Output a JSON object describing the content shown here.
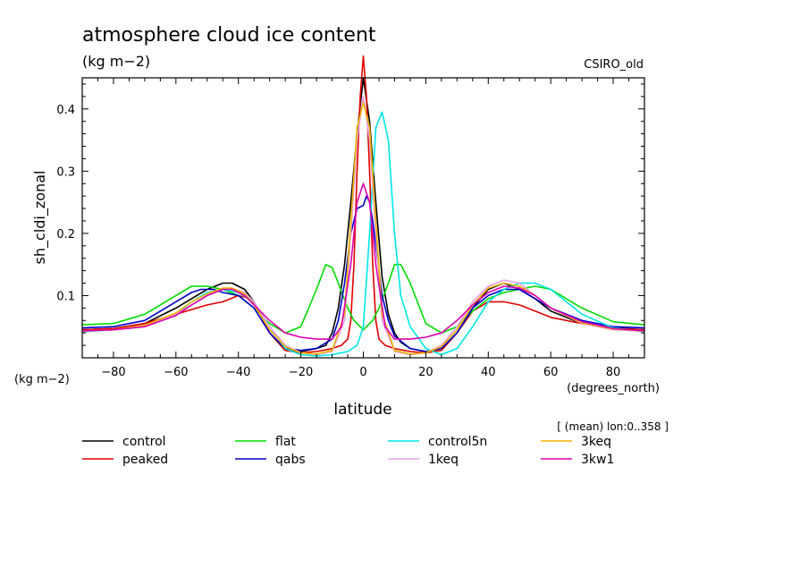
{
  "chart_data": {
    "type": "line",
    "title": "atmosphere cloud ice content",
    "subtitle": "(kg m−2)",
    "model_label": "CSIRO_old",
    "xlabel": "latitude",
    "x_units": "(degrees_north)",
    "ylabel": "sh_cldi_zonal",
    "y_units": "(kg m−2)",
    "mean_note": "[ (mean) lon:0..358 ]",
    "xlim": [
      -90,
      90
    ],
    "ylim": [
      0,
      0.45
    ],
    "x_ticks": [
      -80,
      -60,
      -40,
      -20,
      0,
      20,
      40,
      60,
      80
    ],
    "x_tick_labels": [
      "−80",
      "−60",
      "−40",
      "−20",
      "0",
      "20",
      "40",
      "60",
      "80"
    ],
    "y_ticks": [
      0.1,
      0.2,
      0.3,
      0.4
    ],
    "y_tick_labels": [
      "0.1",
      "0.2",
      "0.3",
      "0.4"
    ],
    "grid": false,
    "legend_position": "below",
    "series": [
      {
        "name": "control",
        "color": "#000000",
        "x": [
          -90,
          -80,
          -70,
          -60,
          -55,
          -50,
          -45,
          -42,
          -38,
          -35,
          -30,
          -25,
          -20,
          -15,
          -12,
          -10,
          -8,
          -6,
          -4,
          -2,
          0,
          2,
          4,
          6,
          8,
          10,
          12,
          15,
          20,
          25,
          30,
          35,
          40,
          45,
          50,
          55,
          60,
          70,
          80,
          90
        ],
        "y": [
          0.045,
          0.047,
          0.055,
          0.08,
          0.095,
          0.11,
          0.12,
          0.12,
          0.11,
          0.09,
          0.04,
          0.012,
          0.01,
          0.015,
          0.02,
          0.04,
          0.08,
          0.15,
          0.25,
          0.36,
          0.45,
          0.38,
          0.25,
          0.13,
          0.07,
          0.04,
          0.025,
          0.015,
          0.01,
          0.015,
          0.04,
          0.08,
          0.11,
          0.12,
          0.11,
          0.095,
          0.075,
          0.055,
          0.048,
          0.045
        ]
      },
      {
        "name": "peaked",
        "color": "#e00000",
        "x": [
          -90,
          -80,
          -70,
          -60,
          -50,
          -45,
          -40,
          -36,
          -33,
          -30,
          -25,
          -20,
          -15,
          -10,
          -7,
          -5,
          -4,
          -3,
          -2,
          -1,
          0,
          1,
          2,
          3,
          4,
          5,
          7,
          10,
          15,
          20,
          25,
          30,
          35,
          40,
          45,
          50,
          55,
          60,
          70,
          80,
          90
        ],
        "y": [
          0.045,
          0.047,
          0.055,
          0.07,
          0.085,
          0.09,
          0.1,
          0.095,
          0.07,
          0.04,
          0.012,
          0.008,
          0.01,
          0.015,
          0.02,
          0.03,
          0.06,
          0.15,
          0.3,
          0.42,
          0.485,
          0.42,
          0.3,
          0.15,
          0.06,
          0.03,
          0.02,
          0.015,
          0.01,
          0.008,
          0.012,
          0.04,
          0.075,
          0.09,
          0.09,
          0.085,
          0.075,
          0.065,
          0.055,
          0.047,
          0.045
        ]
      },
      {
        "name": "flat",
        "color": "#00dd00",
        "x": [
          -90,
          -80,
          -70,
          -60,
          -55,
          -50,
          -45,
          -40,
          -35,
          -30,
          -25,
          -20,
          -15,
          -12,
          -10,
          -8,
          -5,
          -3,
          0,
          3,
          5,
          8,
          10,
          12,
          15,
          20,
          25,
          30,
          35,
          40,
          45,
          50,
          55,
          60,
          70,
          80,
          90
        ],
        "y": [
          0.053,
          0.055,
          0.07,
          0.1,
          0.115,
          0.115,
          0.11,
          0.1,
          0.08,
          0.055,
          0.04,
          0.05,
          0.11,
          0.15,
          0.145,
          0.12,
          0.08,
          0.06,
          0.045,
          0.06,
          0.08,
          0.12,
          0.15,
          0.15,
          0.12,
          0.055,
          0.04,
          0.05,
          0.075,
          0.095,
          0.105,
          0.11,
          0.115,
          0.11,
          0.08,
          0.058,
          0.053
        ]
      },
      {
        "name": "qabs",
        "color": "#0000cc",
        "x": [
          -90,
          -80,
          -70,
          -60,
          -55,
          -52,
          -48,
          -45,
          -40,
          -35,
          -30,
          -25,
          -20,
          -15,
          -10,
          -8,
          -6,
          -4,
          -2,
          0,
          1,
          2,
          3,
          4,
          5,
          6,
          8,
          10,
          15,
          20,
          25,
          30,
          35,
          40,
          45,
          50,
          55,
          60,
          70,
          80,
          90
        ],
        "y": [
          0.048,
          0.05,
          0.06,
          0.09,
          0.105,
          0.11,
          0.11,
          0.105,
          0.1,
          0.08,
          0.04,
          0.015,
          0.012,
          0.015,
          0.03,
          0.06,
          0.12,
          0.2,
          0.24,
          0.245,
          0.26,
          0.25,
          0.22,
          0.18,
          0.14,
          0.1,
          0.06,
          0.035,
          0.015,
          0.01,
          0.015,
          0.04,
          0.08,
          0.1,
          0.11,
          0.11,
          0.095,
          0.08,
          0.06,
          0.05,
          0.048
        ]
      },
      {
        "name": "control5n",
        "color": "#00e6e6",
        "x": [
          -90,
          -80,
          -70,
          -60,
          -55,
          -50,
          -45,
          -40,
          -35,
          -30,
          -25,
          -20,
          -15,
          -10,
          -5,
          -2,
          0,
          2,
          4,
          6,
          8,
          10,
          12,
          15,
          20,
          25,
          30,
          35,
          40,
          45,
          50,
          55,
          60,
          70,
          80,
          90
        ],
        "y": [
          0.042,
          0.045,
          0.05,
          0.07,
          0.09,
          0.105,
          0.11,
          0.105,
          0.09,
          0.05,
          0.015,
          0.005,
          0.003,
          0.005,
          0.01,
          0.02,
          0.05,
          0.2,
          0.37,
          0.395,
          0.35,
          0.2,
          0.1,
          0.05,
          0.015,
          0.005,
          0.015,
          0.05,
          0.09,
          0.11,
          0.12,
          0.12,
          0.11,
          0.07,
          0.048,
          0.042
        ]
      },
      {
        "name": "1keq",
        "color": "#e8a0e8",
        "x": [
          -90,
          -80,
          -70,
          -60,
          -55,
          -50,
          -45,
          -42,
          -38,
          -35,
          -30,
          -25,
          -20,
          -15,
          -10,
          -6,
          -4,
          -2,
          0,
          2,
          4,
          6,
          10,
          15,
          20,
          25,
          30,
          35,
          40,
          45,
          50,
          55,
          60,
          70,
          80,
          90
        ],
        "y": [
          0.043,
          0.045,
          0.05,
          0.07,
          0.085,
          0.1,
          0.11,
          0.112,
          0.105,
          0.09,
          0.05,
          0.02,
          0.008,
          0.005,
          0.01,
          0.06,
          0.2,
          0.35,
          0.42,
          0.35,
          0.2,
          0.06,
          0.01,
          0.005,
          0.008,
          0.02,
          0.05,
          0.09,
          0.115,
          0.125,
          0.12,
          0.1,
          0.08,
          0.055,
          0.045,
          0.043
        ]
      },
      {
        "name": "3keq",
        "color": "#f0b400",
        "x": [
          -90,
          -80,
          -70,
          -60,
          -55,
          -50,
          -45,
          -42,
          -38,
          -35,
          -30,
          -25,
          -20,
          -15,
          -10,
          -6,
          -4,
          -2,
          0,
          2,
          4,
          6,
          10,
          15,
          20,
          25,
          30,
          35,
          40,
          45,
          50,
          55,
          60,
          70,
          80,
          90
        ],
        "y": [
          0.043,
          0.045,
          0.052,
          0.072,
          0.09,
          0.103,
          0.112,
          0.112,
          0.103,
          0.085,
          0.045,
          0.018,
          0.008,
          0.006,
          0.012,
          0.07,
          0.22,
          0.37,
          0.41,
          0.37,
          0.22,
          0.07,
          0.012,
          0.006,
          0.008,
          0.018,
          0.045,
          0.085,
          0.112,
          0.12,
          0.115,
          0.1,
          0.08,
          0.056,
          0.046,
          0.043
        ]
      },
      {
        "name": "3kw1",
        "color": "#e000b0",
        "x": [
          -90,
          -80,
          -70,
          -60,
          -55,
          -50,
          -45,
          -42,
          -38,
          -35,
          -30,
          -25,
          -20,
          -15,
          -10,
          -7,
          -4,
          -2,
          0,
          2,
          4,
          7,
          10,
          15,
          20,
          25,
          30,
          35,
          40,
          45,
          50,
          55,
          60,
          70,
          80,
          90
        ],
        "y": [
          0.043,
          0.045,
          0.05,
          0.068,
          0.085,
          0.1,
          0.11,
          0.11,
          0.1,
          0.085,
          0.06,
          0.04,
          0.033,
          0.03,
          0.03,
          0.05,
          0.15,
          0.25,
          0.28,
          0.25,
          0.15,
          0.05,
          0.03,
          0.03,
          0.033,
          0.04,
          0.06,
          0.085,
          0.105,
          0.115,
          0.112,
          0.1,
          0.08,
          0.058,
          0.047,
          0.043
        ]
      }
    ]
  }
}
